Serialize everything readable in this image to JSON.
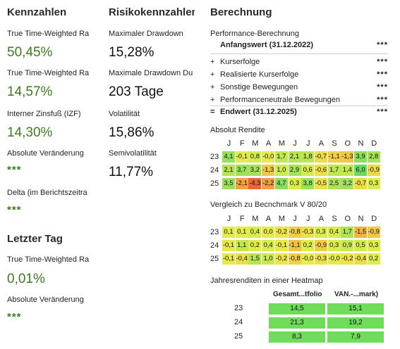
{
  "kennzahlen": {
    "title": "Kennzahlen",
    "items": [
      {
        "label": "True Time-Weighted Ra",
        "value": "50,45%"
      },
      {
        "label": "True Time-Weighted Ra",
        "value": "14,57%"
      },
      {
        "label": "Interner Zinsfuß (IZF)",
        "value": "14,30%"
      },
      {
        "label": "Absolute Veränderung",
        "value": "***"
      },
      {
        "label": "Delta (im Berichtszeitra",
        "value": "***"
      }
    ]
  },
  "letzter_tag": {
    "title": "Letzter Tag",
    "items": [
      {
        "label": "True Time-Weighted Ra",
        "value": "0,01%"
      },
      {
        "label": "Absolute Veränderung",
        "value": "***"
      }
    ]
  },
  "risiko": {
    "title": "Risikokennzahlen",
    "items": [
      {
        "label": "Maximaler Drawdown",
        "value": "15,28%"
      },
      {
        "label": "Maximale Drawdown Du",
        "value": "203 Tage"
      },
      {
        "label": "Volatilität",
        "value": "15,86%"
      },
      {
        "label": "Semivolatilität",
        "value": "11,77%"
      }
    ]
  },
  "berechnung": {
    "title": "Berechnung",
    "subtitle": "Performance-Berechnung",
    "start": {
      "label": "Anfangswert (31.12.2022)",
      "value": "***"
    },
    "rows": [
      {
        "sym": "+",
        "label": "Kurserfolge",
        "value": "***"
      },
      {
        "sym": "+",
        "label": "Realisierte Kurserfolge",
        "value": "***"
      },
      {
        "sym": "+",
        "label": "Sonstige Bewegungen",
        "value": "***"
      },
      {
        "sym": "+",
        "label": "Performanceneutrale Bewegungen",
        "value": "***"
      }
    ],
    "end": {
      "sym": "=",
      "label": "Endwert (31.12.2025)",
      "value": "***"
    }
  },
  "absolut_rendite": {
    "title": "Absolut Rendite",
    "months": [
      "J",
      "F",
      "M",
      "A",
      "M",
      "J",
      "J",
      "A",
      "S",
      "O",
      "N",
      "D"
    ],
    "rows": [
      {
        "year": "23",
        "values": [
          "4,1",
          "-0,1",
          "0,8",
          "-0,0",
          "1,7",
          "2,1",
          "1,8",
          "-0,7",
          "-1,1",
          "-1,3",
          "3,9",
          "2,8"
        ],
        "colors": [
          "#96e05a",
          "#e3ea4a",
          "#d3ec4e",
          "#e6ea4a",
          "#bfe751",
          "#b6e551",
          "#bce651",
          "#ecde48",
          "#f0cf45",
          "#f1c844",
          "#8fdf5a",
          "#a4e256"
        ]
      },
      {
        "year": "24",
        "values": [
          "2,1",
          "3,7",
          "3,2",
          "-1,3",
          "1,0",
          "2,9",
          "0,6",
          "-0,6",
          "1,7",
          "1,4",
          "6,0",
          "-0,9"
        ],
        "colors": [
          "#b6e551",
          "#9ae158",
          "#a3e256",
          "#f1c844",
          "#cdea4f",
          "#a5e256",
          "#d5ec4d",
          "#ede047",
          "#bfe751",
          "#c6e84f",
          "#6ed85f",
          "#eed846"
        ]
      },
      {
        "year": "25",
        "values": [
          "3,5",
          "-2,1",
          "-4,3",
          "-2,2",
          "4,7",
          "0,3",
          "3,8",
          "-0,5",
          "2,5",
          "3,2",
          "-0,7",
          "0,3"
        ],
        "colors": [
          "#9de157",
          "#f0a43e",
          "#e5673a",
          "#ef9f3e",
          "#86de5b",
          "#dbec4c",
          "#98e158",
          "#ece248",
          "#aee353",
          "#a3e256",
          "#ecdc48",
          "#dbec4c"
        ]
      }
    ]
  },
  "vergleich": {
    "title": "Vergleich zu Becnchmark V 80/20",
    "months": [
      "J",
      "F",
      "M",
      "A",
      "M",
      "J",
      "J",
      "A",
      "S",
      "O",
      "N",
      "D"
    ],
    "rows": [
      {
        "year": "23",
        "values": [
          "0,1",
          "0,1",
          "0,4",
          "0,0",
          "-0,2",
          "-0,8",
          "-0,3",
          "0,3",
          "0,4",
          "1,7",
          "-1,5",
          "-0,9"
        ],
        "colors": [
          "#e3ec4a",
          "#e3ec4a",
          "#d8ec4c",
          "#e6ea4a",
          "#ece448",
          "#efd044",
          "#eddf47",
          "#dcec4c",
          "#d8ec4c",
          "#aee353",
          "#f1b641",
          "#f0c943"
        ]
      },
      {
        "year": "24",
        "values": [
          "-0,1",
          "1,1",
          "0,2",
          "0,4",
          "-0,1",
          "-1,1",
          "0,2",
          "-0,9",
          "0,3",
          "0,9",
          "0,5",
          "0,3"
        ],
        "colors": [
          "#e8e849",
          "#c4e750",
          "#e0ec4b",
          "#d8ec4c",
          "#e8e849",
          "#f0c443",
          "#e0ec4b",
          "#f0cd44",
          "#dcec4c",
          "#cbe94f",
          "#d5ec4d",
          "#dcec4c"
        ]
      },
      {
        "year": "25",
        "values": [
          "-0,1",
          "-0,4",
          "1,5",
          "1,0",
          "-0,2",
          "-0,8",
          "-0,0",
          "-0,3",
          "-0,0",
          "-0,2",
          "-0,4",
          "0,2"
        ],
        "colors": [
          "#e8e849",
          "#ebdf47",
          "#b7e552",
          "#c9e94f",
          "#ece448",
          "#efd044",
          "#e6ea4a",
          "#ece148",
          "#e6ea4a",
          "#ece448",
          "#ebdf47",
          "#e0ec4b"
        ]
      }
    ]
  },
  "jahresrenditen": {
    "title": "Jahresrenditen in einer Heatmap",
    "headers": [
      "Gesamt...tfolio",
      "VAN.-...mark)"
    ],
    "rows": [
      {
        "year": "23",
        "values": [
          "14,5",
          "15,1"
        ]
      },
      {
        "year": "24",
        "values": [
          "21,3",
          "19,2"
        ]
      },
      {
        "year": "25",
        "values": [
          "8,3",
          "7,9"
        ]
      }
    ]
  }
}
